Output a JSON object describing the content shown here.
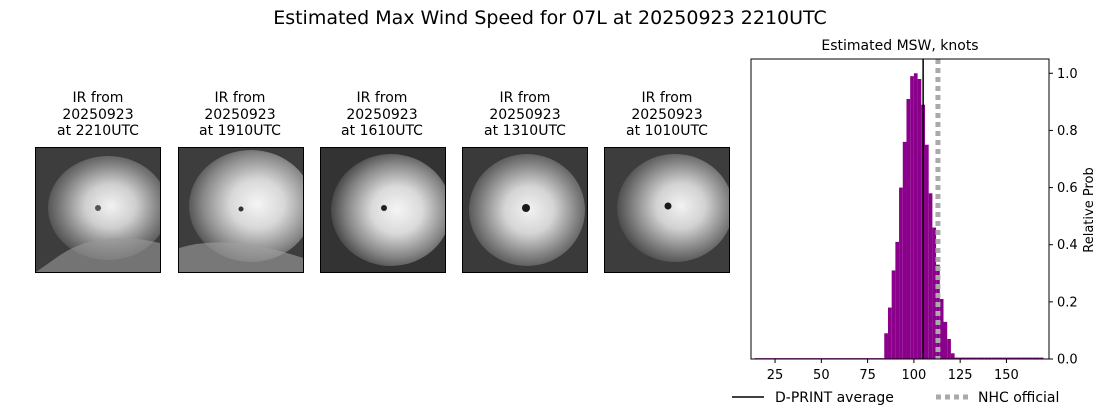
{
  "suptitle": "Estimated Max Wind Speed for 07L at 20250923 2210UTC",
  "ir_panels": [
    {
      "line1": "IR from",
      "line2": "20250923",
      "line3": "at 2210UTC"
    },
    {
      "line1": "IR from",
      "line2": "20250923",
      "line3": "at 1910UTC"
    },
    {
      "line1": "IR from",
      "line2": "20250923",
      "line3": "at 1610UTC"
    },
    {
      "line1": "IR from",
      "line2": "20250923",
      "line3": "at 1310UTC"
    },
    {
      "line1": "IR from",
      "line2": "20250923",
      "line3": "at 1010UTC"
    }
  ],
  "chart_data": {
    "type": "bar",
    "title": "Estimated MSW, knots",
    "xlabel": "",
    "ylabel": "Relative Prob",
    "xlim": [
      12,
      173
    ],
    "ylim": [
      0,
      1.05
    ],
    "xticks": [
      25,
      50,
      75,
      100,
      125,
      150
    ],
    "yticks": [
      0.0,
      0.2,
      0.4,
      0.6,
      0.8,
      1.0
    ],
    "ytick_labels": [
      "0.0",
      "0.2",
      "0.4",
      "0.6",
      "0.8",
      "1.0"
    ],
    "bin_width": 2,
    "bins": [
      {
        "x": 15,
        "y": 0.003
      },
      {
        "x": 17,
        "y": 0.003
      },
      {
        "x": 19,
        "y": 0.003
      },
      {
        "x": 21,
        "y": 0.003
      },
      {
        "x": 23,
        "y": 0.003
      },
      {
        "x": 25,
        "y": 0.003
      },
      {
        "x": 27,
        "y": 0.003
      },
      {
        "x": 29,
        "y": 0.003
      },
      {
        "x": 31,
        "y": 0.003
      },
      {
        "x": 33,
        "y": 0.003
      },
      {
        "x": 35,
        "y": 0.003
      },
      {
        "x": 37,
        "y": 0.003
      },
      {
        "x": 39,
        "y": 0.003
      },
      {
        "x": 41,
        "y": 0.003
      },
      {
        "x": 43,
        "y": 0.003
      },
      {
        "x": 45,
        "y": 0.003
      },
      {
        "x": 47,
        "y": 0.003
      },
      {
        "x": 49,
        "y": 0.003
      },
      {
        "x": 51,
        "y": 0.003
      },
      {
        "x": 53,
        "y": 0.003
      },
      {
        "x": 55,
        "y": 0.003
      },
      {
        "x": 57,
        "y": 0.003
      },
      {
        "x": 59,
        "y": 0.003
      },
      {
        "x": 61,
        "y": 0.003
      },
      {
        "x": 63,
        "y": 0.003
      },
      {
        "x": 65,
        "y": 0.003
      },
      {
        "x": 67,
        "y": 0.003
      },
      {
        "x": 69,
        "y": 0.003
      },
      {
        "x": 71,
        "y": 0.003
      },
      {
        "x": 73,
        "y": 0.003
      },
      {
        "x": 75,
        "y": 0.003
      },
      {
        "x": 77,
        "y": 0.003
      },
      {
        "x": 79,
        "y": 0.003
      },
      {
        "x": 81,
        "y": 0.003
      },
      {
        "x": 83,
        "y": 0.003
      },
      {
        "x": 85,
        "y": 0.09
      },
      {
        "x": 87,
        "y": 0.18
      },
      {
        "x": 89,
        "y": 0.31
      },
      {
        "x": 91,
        "y": 0.41
      },
      {
        "x": 93,
        "y": 0.6
      },
      {
        "x": 95,
        "y": 0.76
      },
      {
        "x": 97,
        "y": 0.91
      },
      {
        "x": 99,
        "y": 0.99
      },
      {
        "x": 101,
        "y": 1.0
      },
      {
        "x": 103,
        "y": 0.98
      },
      {
        "x": 105,
        "y": 0.89
      },
      {
        "x": 107,
        "y": 0.75
      },
      {
        "x": 109,
        "y": 0.58
      },
      {
        "x": 111,
        "y": 0.46
      },
      {
        "x": 113,
        "y": 0.33
      },
      {
        "x": 115,
        "y": 0.21
      },
      {
        "x": 117,
        "y": 0.13
      },
      {
        "x": 119,
        "y": 0.07
      },
      {
        "x": 121,
        "y": 0.02
      },
      {
        "x": 123,
        "y": 0.005
      },
      {
        "x": 125,
        "y": 0.005
      },
      {
        "x": 127,
        "y": 0.005
      },
      {
        "x": 129,
        "y": 0.005
      },
      {
        "x": 131,
        "y": 0.005
      },
      {
        "x": 133,
        "y": 0.005
      },
      {
        "x": 135,
        "y": 0.005
      },
      {
        "x": 137,
        "y": 0.005
      },
      {
        "x": 139,
        "y": 0.005
      },
      {
        "x": 141,
        "y": 0.005
      },
      {
        "x": 143,
        "y": 0.005
      },
      {
        "x": 145,
        "y": 0.005
      },
      {
        "x": 147,
        "y": 0.005
      },
      {
        "x": 149,
        "y": 0.005
      },
      {
        "x": 151,
        "y": 0.005
      },
      {
        "x": 153,
        "y": 0.005
      },
      {
        "x": 155,
        "y": 0.005
      },
      {
        "x": 157,
        "y": 0.005
      },
      {
        "x": 159,
        "y": 0.005
      },
      {
        "x": 161,
        "y": 0.005
      },
      {
        "x": 163,
        "y": 0.005
      },
      {
        "x": 165,
        "y": 0.005
      },
      {
        "x": 167,
        "y": 0.005
      },
      {
        "x": 169,
        "y": 0.005
      }
    ],
    "bar_color": "#8b008b",
    "vlines": [
      {
        "name": "D-PRINT average",
        "x": 105,
        "color": "#000000",
        "style": "solid"
      },
      {
        "name": "NHC official",
        "x": 113,
        "color": "#aaaaaa",
        "style": "dotted"
      }
    ],
    "legend": {
      "placement": "bottom"
    }
  }
}
